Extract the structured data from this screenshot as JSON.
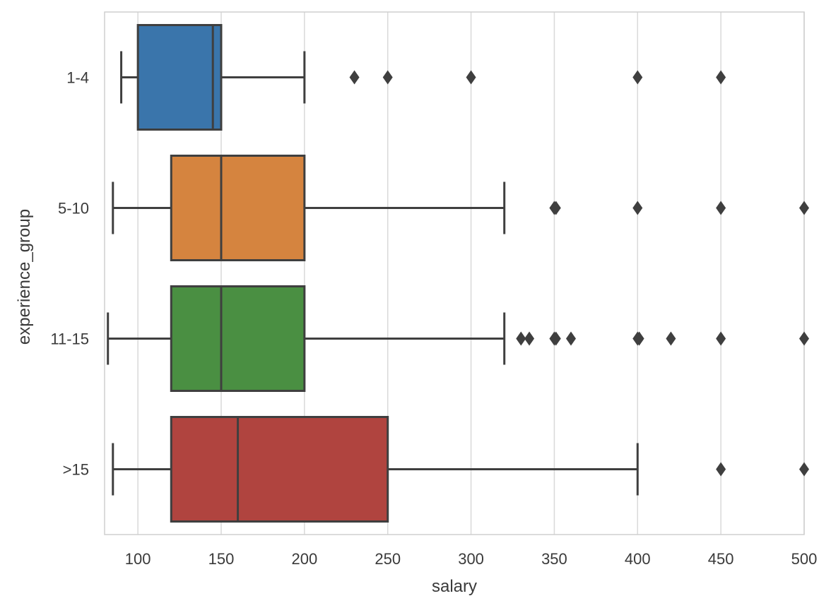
{
  "chart_data": {
    "type": "box",
    "orientation": "horizontal",
    "xlabel": "salary",
    "ylabel": "experience_group",
    "xlim": [
      80,
      500
    ],
    "xticks": [
      100,
      150,
      200,
      250,
      300,
      350,
      400,
      450,
      500
    ],
    "grid": "vertical",
    "categories": [
      "1-4",
      "5-10",
      "11-15",
      ">15"
    ],
    "series": [
      {
        "category": "1-4",
        "color": "#3a75ab",
        "whisker_low": 90,
        "q1": 100,
        "median": 145,
        "q3": 150,
        "whisker_high": 200,
        "outliers": [
          230,
          250,
          300,
          400,
          450
        ]
      },
      {
        "category": "5-10",
        "color": "#d5843f",
        "whisker_low": 85,
        "q1": 120,
        "median": 150,
        "q3": 200,
        "whisker_high": 320,
        "outliers": [
          350,
          351,
          400,
          450,
          500
        ]
      },
      {
        "category": "11-15",
        "color": "#4a8f42",
        "whisker_low": 82,
        "q1": 120,
        "median": 150,
        "q3": 200,
        "whisker_high": 320,
        "outliers": [
          330,
          335,
          350,
          351,
          360,
          400,
          401,
          420,
          450,
          500
        ]
      },
      {
        "category": ">15",
        "color": "#b0443f",
        "whisker_low": 85,
        "q1": 120,
        "median": 160,
        "q3": 250,
        "whisker_high": 400,
        "outliers": [
          450,
          500
        ]
      }
    ]
  }
}
